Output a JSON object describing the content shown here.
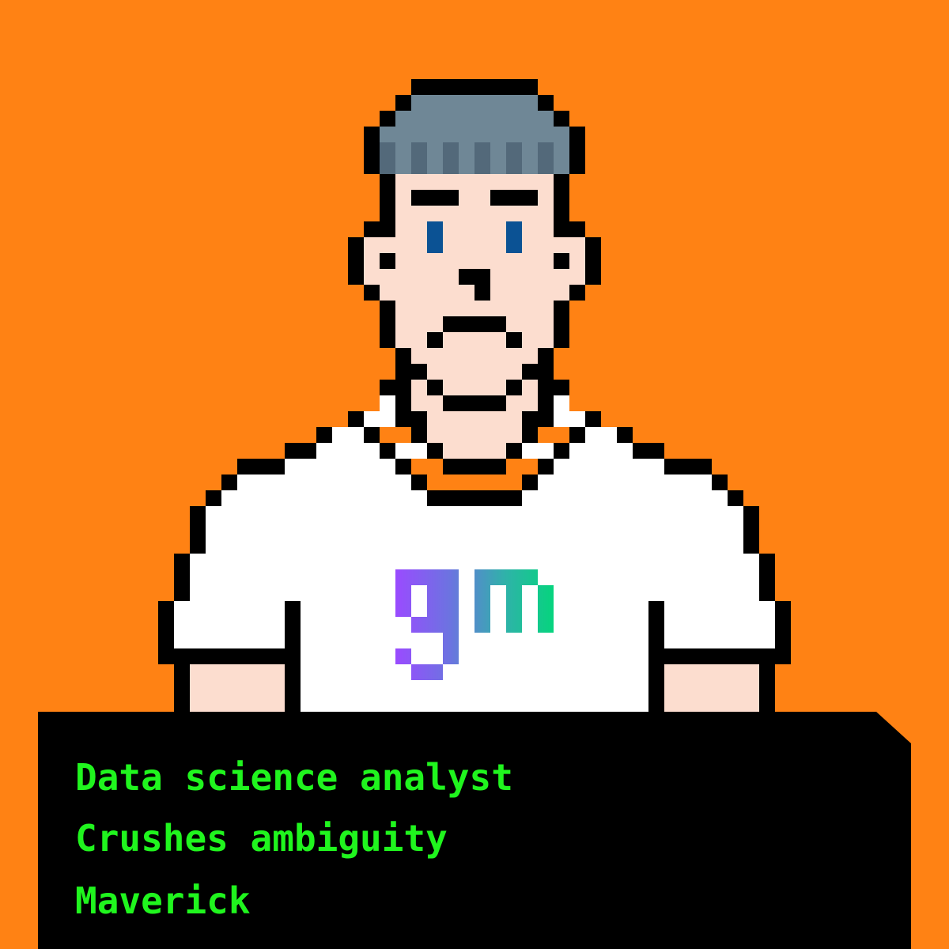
{
  "colors": {
    "background": "#FF8214",
    "outline": "#000000",
    "skin": "#FCDDCF",
    "beanie": "#6F8796",
    "beanie_rib": "#53697A",
    "eyes": "#0B5294",
    "shirt": "#FFFFFF",
    "panel": "#000000",
    "panel_text": "#20F51E",
    "gm_gradient": [
      "#9A4BFF",
      "#6B74E0",
      "#2EB3A8",
      "#06D47E"
    ]
  },
  "character": {
    "headwear": "beanie",
    "shirt_logo": "gm"
  },
  "info_panel": {
    "lines": [
      "Data science analyst",
      "Crushes ambiguity",
      "Maverick"
    ]
  }
}
